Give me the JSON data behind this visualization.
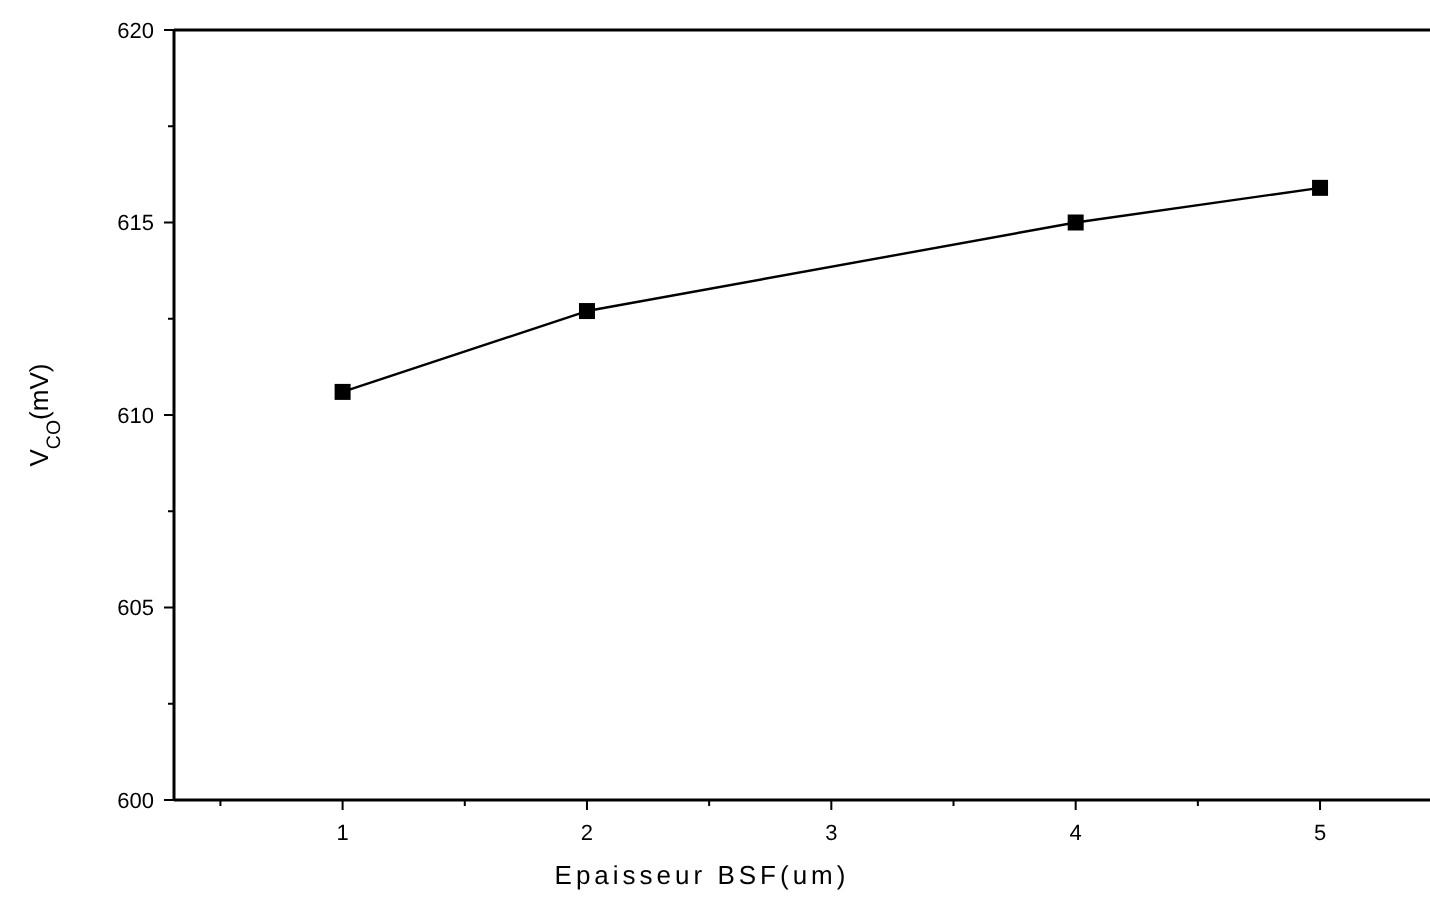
{
  "chart_data": {
    "type": "line",
    "xlabel": "Epaisseur BSF(um)",
    "ylabel": "V$_{CO}$(mV)",
    "x": [
      1,
      2,
      4,
      5
    ],
    "series": [
      {
        "color": "#000000",
        "values": [
          610.6,
          612.7,
          615.0,
          615.9
        ]
      }
    ],
    "xlim": [
      0.31,
      5.45
    ],
    "ylim": [
      600,
      620
    ],
    "xticks": [
      {
        "value": 0.5,
        "label": null
      },
      1,
      {
        "value": 1.5,
        "label": null
      },
      2,
      {
        "value": 2.5,
        "label": null
      },
      3,
      {
        "value": 3.5,
        "label": null
      },
      4,
      {
        "value": 4.5,
        "label": null
      },
      5
    ],
    "yticks": [
      600,
      {
        "value": 602.5,
        "label": null
      },
      605,
      {
        "value": 607.5,
        "label": null
      },
      610,
      {
        "value": 612.5,
        "label": null
      },
      615,
      {
        "value": 617.5,
        "label": null
      },
      620
    ],
    "marker": "square",
    "line_style": "solid",
    "grid": false
  }
}
